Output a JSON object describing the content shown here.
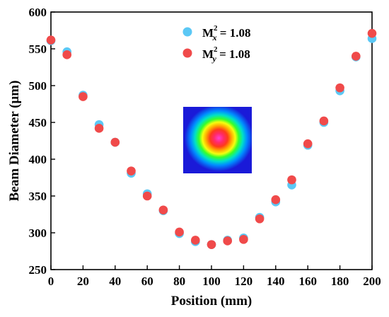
{
  "chart_data": {
    "type": "scatter",
    "xlabel": "Position (mm)",
    "ylabel": "Beam Diameter (μm)",
    "xlim": [
      0,
      200
    ],
    "ylim": [
      250,
      600
    ],
    "x_ticks": [
      0,
      20,
      40,
      60,
      80,
      100,
      120,
      140,
      160,
      180,
      200
    ],
    "y_ticks": [
      250,
      300,
      350,
      400,
      450,
      500,
      550,
      600
    ],
    "grid": false,
    "legend_position": "top-center",
    "series": [
      {
        "name": "M",
        "name_sup": "2",
        "name_sub": "x",
        "name_tail": " = 1.08",
        "color": "#5bc8f5",
        "points": [
          [
            0,
            561
          ],
          [
            10,
            546
          ],
          [
            20,
            487
          ],
          [
            30,
            447
          ],
          [
            40,
            423
          ],
          [
            50,
            381
          ],
          [
            60,
            353
          ],
          [
            70,
            330
          ],
          [
            80,
            299
          ],
          [
            90,
            288
          ],
          [
            100,
            284
          ],
          [
            110,
            290
          ],
          [
            120,
            293
          ],
          [
            130,
            321
          ],
          [
            140,
            342
          ],
          [
            150,
            365
          ],
          [
            160,
            419
          ],
          [
            170,
            450
          ],
          [
            180,
            493
          ],
          [
            190,
            539
          ],
          [
            200,
            564
          ]
        ]
      },
      {
        "name": "M",
        "name_sup": "2",
        "name_sub": "y",
        "name_tail": " = 1.08",
        "color": "#f04a4a",
        "points": [
          [
            0,
            562
          ],
          [
            10,
            542
          ],
          [
            20,
            485
          ],
          [
            30,
            442
          ],
          [
            40,
            423
          ],
          [
            50,
            384
          ],
          [
            60,
            350
          ],
          [
            70,
            331
          ],
          [
            80,
            301
          ],
          [
            90,
            290
          ],
          [
            100,
            284
          ],
          [
            110,
            289
          ],
          [
            120,
            291
          ],
          [
            130,
            319
          ],
          [
            140,
            345
          ],
          [
            150,
            372
          ],
          [
            160,
            421
          ],
          [
            170,
            452
          ],
          [
            180,
            497
          ],
          [
            190,
            540
          ],
          [
            200,
            571
          ]
        ]
      }
    ]
  }
}
